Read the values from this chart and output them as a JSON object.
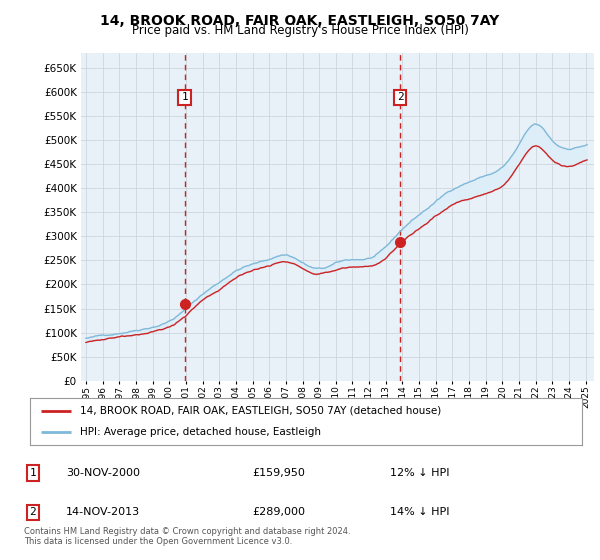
{
  "title": "14, BROOK ROAD, FAIR OAK, EASTLEIGH, SO50 7AY",
  "subtitle": "Price paid vs. HM Land Registry's House Price Index (HPI)",
  "legend_line1": "14, BROOK ROAD, FAIR OAK, EASTLEIGH, SO50 7AY (detached house)",
  "legend_line2": "HPI: Average price, detached house, Eastleigh",
  "copyright": "Contains HM Land Registry data © Crown copyright and database right 2024.\nThis data is licensed under the Open Government Licence v3.0.",
  "transactions": [
    {
      "num": 1,
      "date": "30-NOV-2000",
      "price": "£159,950",
      "pct": "12% ↓ HPI"
    },
    {
      "num": 2,
      "date": "14-NOV-2013",
      "price": "£289,000",
      "pct": "14% ↓ HPI"
    }
  ],
  "sale1_year": 2000.92,
  "sale1_price": 159950,
  "sale2_year": 2013.87,
  "sale2_price": 289000,
  "ylim": [
    0,
    680000
  ],
  "xlim_start": 1994.7,
  "xlim_end": 2025.5,
  "hpi_color": "#7fb8d8",
  "price_color": "#cc2222",
  "vline_color": "#cc2222",
  "fill_color": "#ddeef8",
  "background_color": "#e8f0f8",
  "grid_color": "#c8d0d8",
  "yticks": [
    0,
    50000,
    100000,
    150000,
    200000,
    250000,
    300000,
    350000,
    400000,
    450000,
    500000,
    550000,
    600000,
    650000
  ]
}
